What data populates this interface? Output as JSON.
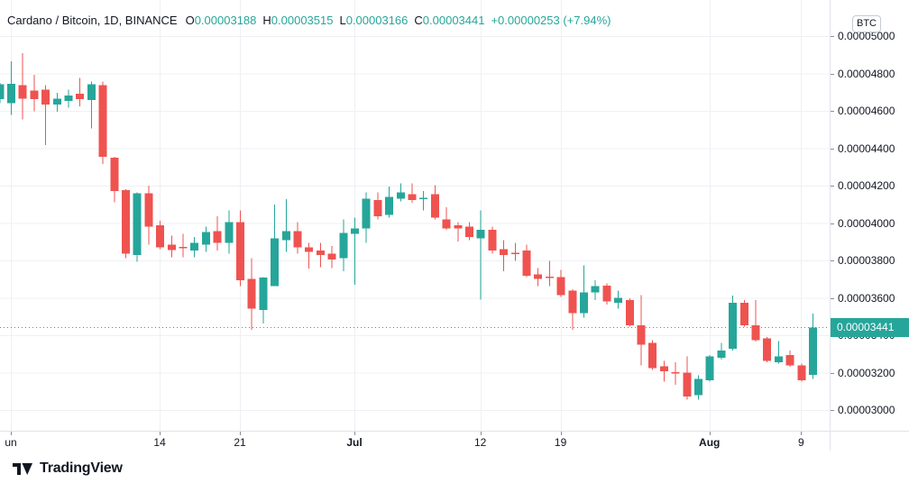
{
  "header": {
    "symbol_title": "Cardano / Bitcoin, 1D, BINANCE",
    "ohlc_items": [
      {
        "label": "O",
        "value": "0.00003188"
      },
      {
        "label": "H",
        "value": "0.00003515"
      },
      {
        "label": "L",
        "value": "0.00003166"
      },
      {
        "label": "C",
        "value": "0.00003441"
      }
    ],
    "change_text": "+0.00000253 (+7.94%)",
    "currency_button_label": "BTC"
  },
  "colors": {
    "up": "#26a69a",
    "down": "#ef5350",
    "text": "#131722",
    "grid": "#eef0f4",
    "axis_border": "#e0e3eb",
    "tag_bg": "#26a69a",
    "tag_text": "#ffffff"
  },
  "price_axis": {
    "levels": [
      {
        "label": "0.00005000",
        "value": 5000
      },
      {
        "label": "0.00004800",
        "value": 4800
      },
      {
        "label": "0.00004600",
        "value": 4600
      },
      {
        "label": "0.00004400",
        "value": 4400
      },
      {
        "label": "0.00004200",
        "value": 4200
      },
      {
        "label": "0.00004000",
        "value": 4000
      },
      {
        "label": "0.00003800",
        "value": 3800
      },
      {
        "label": "0.00003600",
        "value": 3600
      },
      {
        "label": "0.00003400",
        "value": 3400
      },
      {
        "label": "0.00003200",
        "value": 3200
      },
      {
        "label": "0.00003000",
        "value": 3000
      }
    ],
    "current_price_tag": "0.00003441"
  },
  "time_axis": {
    "ticks": [
      {
        "label": "un",
        "index": 1,
        "bold": false
      },
      {
        "label": "14",
        "index": 14,
        "bold": false
      },
      {
        "label": "21",
        "index": 21,
        "bold": false
      },
      {
        "label": "Jul",
        "index": 31,
        "bold": true
      },
      {
        "label": "12",
        "index": 42,
        "bold": false
      },
      {
        "label": "19",
        "index": 49,
        "bold": false
      },
      {
        "label": "Aug",
        "index": 62,
        "bold": true
      },
      {
        "label": "9",
        "index": 70,
        "bold": false
      }
    ]
  },
  "chart_data": {
    "type": "candlestick",
    "title": "Cardano / Bitcoin, 1D, BINANCE",
    "price_scale_unit": "BTC",
    "price_value_multiplier": 1e-08,
    "candle_format": "[open, high, low, close] in units of 0.00000001 BTC",
    "ylim": [
      3000,
      5000
    ],
    "current_price": 3441,
    "grid": true,
    "candles": [
      [
        4663,
        4750,
        4640,
        4743
      ],
      [
        4641,
        4865,
        4578,
        4745
      ],
      [
        4737,
        4908,
        4554,
        4665
      ],
      [
        4708,
        4793,
        4597,
        4662
      ],
      [
        4713,
        4737,
        4418,
        4633
      ],
      [
        4633,
        4697,
        4594,
        4665
      ],
      [
        4652,
        4713,
        4617,
        4681
      ],
      [
        4692,
        4777,
        4625,
        4662
      ],
      [
        4657,
        4757,
        4505,
        4741
      ],
      [
        4737,
        4757,
        4315,
        4354
      ],
      [
        4350,
        4354,
        4111,
        4172
      ],
      [
        4175,
        4180,
        3813,
        3837
      ],
      [
        3829,
        4163,
        3793,
        4159
      ],
      [
        4159,
        4200,
        3885,
        3981
      ],
      [
        3989,
        4013,
        3861,
        3869
      ],
      [
        3885,
        3933,
        3818,
        3856
      ],
      [
        3872,
        3941,
        3818,
        3865
      ],
      [
        3853,
        3925,
        3818,
        3893
      ],
      [
        3885,
        3981,
        3845,
        3952
      ],
      [
        3957,
        4036,
        3853,
        3893
      ],
      [
        3893,
        4068,
        3837,
        4005
      ],
      [
        4005,
        4068,
        3662,
        3694
      ],
      [
        3701,
        3813,
        3430,
        3542
      ],
      [
        3534,
        3712,
        3462,
        3709
      ],
      [
        3662,
        4100,
        3662,
        3917
      ],
      [
        3909,
        4127,
        3845,
        3957
      ],
      [
        3957,
        4005,
        3837,
        3869
      ],
      [
        3869,
        3893,
        3757,
        3845
      ],
      [
        3853,
        3893,
        3765,
        3829
      ],
      [
        3837,
        3877,
        3758,
        3805
      ],
      [
        3813,
        4020,
        3741,
        3948
      ],
      [
        3941,
        4028,
        3670,
        3972
      ],
      [
        3972,
        4163,
        3893,
        4131
      ],
      [
        4123,
        4163,
        4020,
        4036
      ],
      [
        4044,
        4195,
        4028,
        4139
      ],
      [
        4131,
        4211,
        4115,
        4163
      ],
      [
        4155,
        4211,
        4108,
        4123
      ],
      [
        4128,
        4171,
        4068,
        4134
      ],
      [
        4155,
        4203,
        4020,
        4028
      ],
      [
        4020,
        4084,
        3964,
        3972
      ],
      [
        3989,
        4005,
        3901,
        3972
      ],
      [
        3981,
        4005,
        3909,
        3925
      ],
      [
        3917,
        4068,
        3590,
        3964
      ],
      [
        3964,
        3981,
        3837,
        3853
      ],
      [
        3861,
        3909,
        3741,
        3829
      ],
      [
        3841,
        3893,
        3797,
        3833
      ],
      [
        3853,
        3885,
        3710,
        3718
      ],
      [
        3726,
        3758,
        3662,
        3702
      ],
      [
        3714,
        3797,
        3662,
        3706
      ],
      [
        3710,
        3750,
        3606,
        3614
      ],
      [
        3638,
        3646,
        3430,
        3518
      ],
      [
        3518,
        3773,
        3494,
        3630
      ],
      [
        3630,
        3694,
        3589,
        3662
      ],
      [
        3665,
        3678,
        3565,
        3581
      ],
      [
        3574,
        3638,
        3542,
        3601
      ],
      [
        3589,
        3597,
        3446,
        3454
      ],
      [
        3454,
        3614,
        3239,
        3350
      ],
      [
        3359,
        3374,
        3215,
        3223
      ],
      [
        3234,
        3263,
        3151,
        3207
      ],
      [
        3203,
        3255,
        3135,
        3195
      ],
      [
        3199,
        3287,
        3056,
        3072
      ],
      [
        3080,
        3186,
        3056,
        3167
      ],
      [
        3159,
        3295,
        3151,
        3287
      ],
      [
        3279,
        3359,
        3271,
        3319
      ],
      [
        3327,
        3613,
        3319,
        3574
      ],
      [
        3574,
        3589,
        3446,
        3454
      ],
      [
        3454,
        3589,
        3366,
        3374
      ],
      [
        3383,
        3391,
        3255,
        3263
      ],
      [
        3255,
        3368,
        3247,
        3287
      ],
      [
        3295,
        3319,
        3231,
        3239
      ],
      [
        3239,
        3247,
        3151,
        3159
      ],
      [
        3188,
        3515,
        3166,
        3441
      ]
    ]
  },
  "footer": {
    "logo_text": "TradingView"
  }
}
